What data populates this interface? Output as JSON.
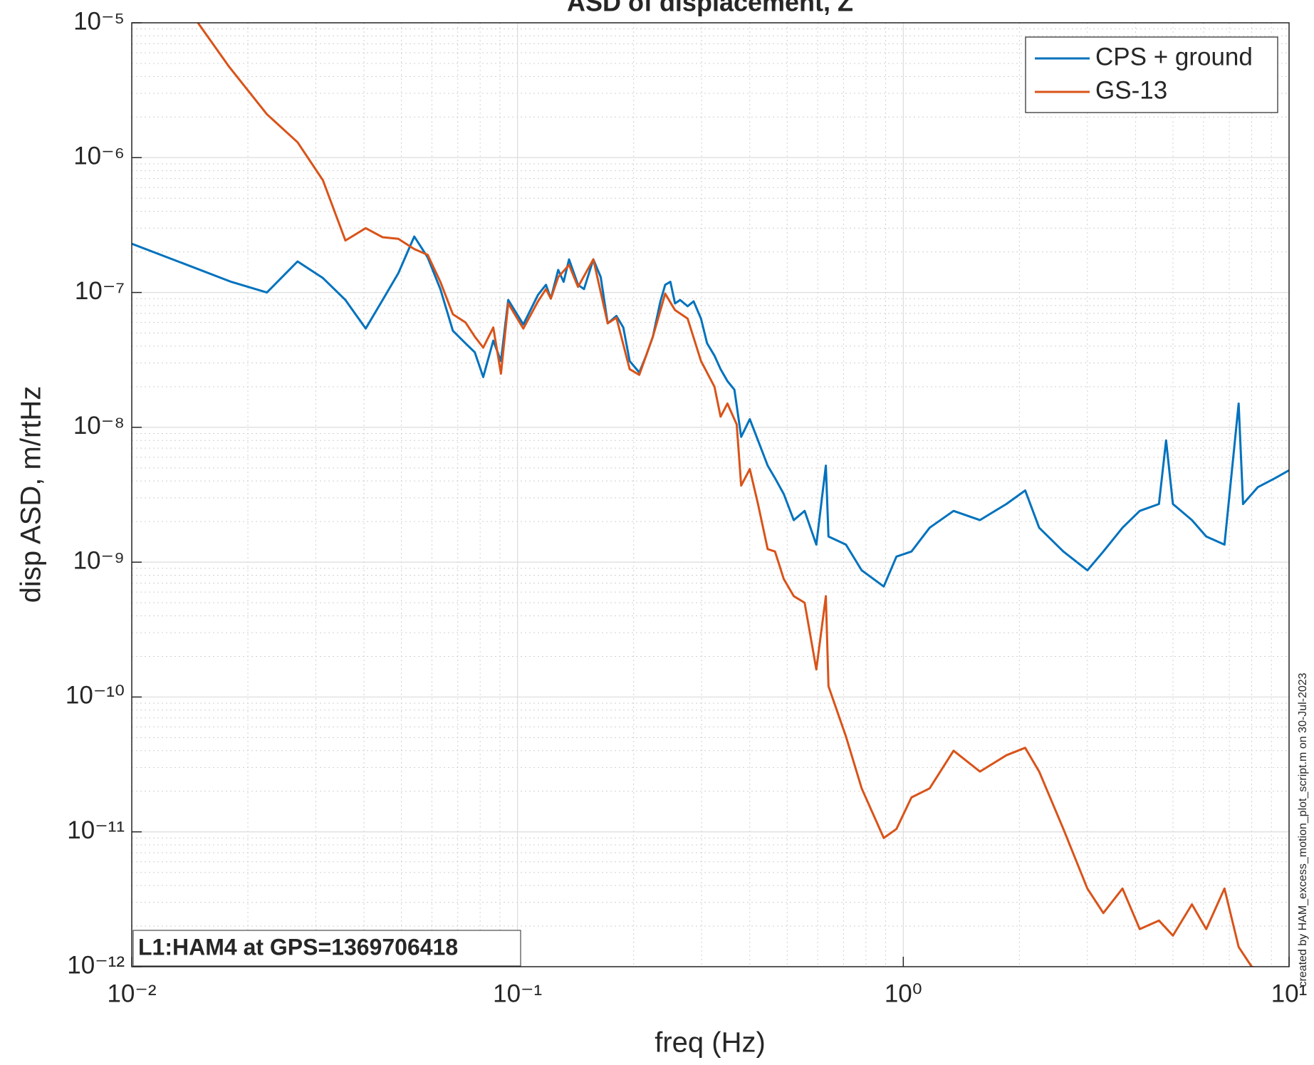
{
  "chart_data": {
    "type": "line",
    "title": "ASD of displacement, Z",
    "xlabel": "freq (Hz)",
    "ylabel": "disp ASD, m/rtHz",
    "annotation": "L1:HAM4 at GPS=1369706418",
    "footnote": "created by HAM_excess_motion_plot_script.m on 30-Jul-2023",
    "xscale": "log",
    "yscale": "log",
    "grid": true,
    "minor_grid": true,
    "legend": "northeast",
    "xlim": [
      0.01,
      10
    ],
    "ylim": [
      1e-12,
      1e-05
    ],
    "xticks": [
      {
        "value": 0.01,
        "label": "10⁻²"
      },
      {
        "value": 0.1,
        "label": "10⁻¹"
      },
      {
        "value": 1,
        "label": "10⁰"
      },
      {
        "value": 10,
        "label": "10¹"
      }
    ],
    "yticks": [
      {
        "value": 1e-12,
        "label": "10⁻¹²"
      },
      {
        "value": 1e-11,
        "label": "10⁻¹¹"
      },
      {
        "value": 1e-10,
        "label": "10⁻¹⁰"
      },
      {
        "value": 1e-09,
        "label": "10⁻⁹"
      },
      {
        "value": 1e-08,
        "label": "10⁻⁸"
      },
      {
        "value": 1e-07,
        "label": "10⁻⁷"
      },
      {
        "value": 1e-06,
        "label": "10⁻⁶"
      },
      {
        "value": 1e-05,
        "label": "10⁻⁵"
      }
    ],
    "series": [
      {
        "name": "CPS + ground",
        "color": "#0072bd",
        "x": [
          0.01,
          0.0181,
          0.0224,
          0.0269,
          0.0313,
          0.0358,
          0.0404,
          0.0447,
          0.0491,
          0.054,
          0.0585,
          0.0631,
          0.068,
          0.0733,
          0.0775,
          0.0815,
          0.0865,
          0.0906,
          0.0946,
          0.1035,
          0.113,
          0.1185,
          0.122,
          0.1275,
          0.1317,
          0.136,
          0.1435,
          0.1487,
          0.1572,
          0.1643,
          0.1713,
          0.1804,
          0.188,
          0.1953,
          0.2068,
          0.2154,
          0.2243,
          0.2346,
          0.2414,
          0.249,
          0.256,
          0.264,
          0.276,
          0.286,
          0.299,
          0.31,
          0.324,
          0.336,
          0.35,
          0.365,
          0.38,
          0.4,
          0.42,
          0.445,
          0.465,
          0.49,
          0.52,
          0.555,
          0.595,
          0.63,
          0.64,
          0.71,
          0.78,
          0.89,
          0.96,
          1.05,
          1.17,
          1.35,
          1.58,
          1.85,
          2.07,
          2.25,
          2.6,
          3.0,
          3.3,
          3.7,
          4.1,
          4.6,
          4.8,
          5.0,
          5.6,
          6.1,
          6.8,
          7.4,
          7.6,
          8.3,
          9.2,
          10
        ],
        "values": [
          2.3e-07,
          1.2e-07,
          1e-07,
          1.7e-07,
          1.28e-07,
          8.8e-08,
          5.4e-08,
          8.8e-08,
          1.39e-07,
          2.6e-07,
          1.82e-07,
          1.06e-07,
          5.2e-08,
          4.2e-08,
          3.6e-08,
          2.36e-08,
          4.4e-08,
          3.1e-08,
          8.8e-08,
          5.8e-08,
          9.6e-08,
          1.14e-07,
          9e-08,
          1.47e-07,
          1.2e-07,
          1.76e-07,
          1.14e-07,
          1.06e-07,
          1.76e-07,
          1.3e-07,
          5.9e-08,
          6.7e-08,
          5.5e-08,
          3.1e-08,
          2.55e-08,
          3.4e-08,
          4.7e-08,
          8.6e-08,
          1.14e-07,
          1.2e-07,
          8.3e-08,
          8.8e-08,
          7.9e-08,
          8.6e-08,
          6.4e-08,
          4.2e-08,
          3.4e-08,
          2.7e-08,
          2.2e-08,
          1.9e-08,
          8.5e-09,
          1.15e-08,
          8e-09,
          5.2e-09,
          4.2e-09,
          3.2e-09,
          2.05e-09,
          2.4e-09,
          1.35e-09,
          5.2e-09,
          1.55e-09,
          1.35e-09,
          8.7e-10,
          6.6e-10,
          1.1e-09,
          1.2e-09,
          1.8e-09,
          2.4e-09,
          2.05e-09,
          2.7e-09,
          3.4e-09,
          1.8e-09,
          1.2e-09,
          8.7e-10,
          1.2e-09,
          1.8e-09,
          2.4e-09,
          2.7e-09,
          8e-09,
          2.7e-09,
          2.05e-09,
          1.55e-09,
          1.35e-09,
          1.5e-08,
          2.7e-09,
          3.6e-09,
          4.2e-09,
          4.8e-09
        ]
      },
      {
        "name": "GS-13",
        "color": "#d95319",
        "x": [
          0.0145,
          0.0179,
          0.0224,
          0.0269,
          0.0313,
          0.0358,
          0.0404,
          0.0447,
          0.0491,
          0.054,
          0.0585,
          0.0631,
          0.068,
          0.0733,
          0.0775,
          0.0815,
          0.0865,
          0.0906,
          0.0946,
          0.1035,
          0.113,
          0.1185,
          0.122,
          0.1275,
          0.136,
          0.1435,
          0.1572,
          0.1713,
          0.1804,
          0.1953,
          0.2068,
          0.2243,
          0.2414,
          0.256,
          0.276,
          0.299,
          0.324,
          0.336,
          0.35,
          0.37,
          0.38,
          0.4,
          0.42,
          0.445,
          0.465,
          0.49,
          0.52,
          0.555,
          0.595,
          0.63,
          0.64,
          0.71,
          0.78,
          0.89,
          0.96,
          1.05,
          1.17,
          1.35,
          1.58,
          1.85,
          2.07,
          2.25,
          2.6,
          3.0,
          3.3,
          3.7,
          4.1,
          4.6,
          5.0,
          5.6,
          6.1,
          6.8,
          7.4,
          8.0,
          8.5
        ],
        "values": [
          1.1e-05,
          4.7e-06,
          2.1e-06,
          1.3e-06,
          6.8e-07,
          2.43e-07,
          3e-07,
          2.57e-07,
          2.5e-07,
          2.1e-07,
          1.9e-07,
          1.2e-07,
          6.9e-08,
          6e-08,
          4.7e-08,
          3.9e-08,
          5.5e-08,
          2.5e-08,
          8.3e-08,
          5.4e-08,
          8.6e-08,
          1.06e-07,
          9e-08,
          1.3e-07,
          1.6e-07,
          1.1e-07,
          1.76e-07,
          5.9e-08,
          6.5e-08,
          2.7e-08,
          2.45e-08,
          4.7e-08,
          9.8e-08,
          7.4e-08,
          6.4e-08,
          3.1e-08,
          2e-08,
          1.2e-08,
          1.5e-08,
          1.05e-08,
          3.7e-09,
          4.9e-09,
          2.7e-09,
          1.25e-09,
          1.2e-09,
          7.5e-10,
          5.6e-10,
          5e-10,
          1.6e-10,
          5.6e-10,
          1.2e-10,
          5.1e-11,
          2.1e-11,
          9e-12,
          1.05e-11,
          1.8e-11,
          2.1e-11,
          4e-11,
          2.8e-11,
          3.7e-11,
          4.2e-11,
          2.8e-11,
          1.05e-11,
          3.8e-12,
          2.5e-12,
          3.8e-12,
          1.9e-12,
          2.2e-12,
          1.7e-12,
          2.9e-12,
          1.9e-12,
          3.8e-12,
          1.4e-12,
          1e-12,
          9.5e-13
        ]
      }
    ]
  }
}
